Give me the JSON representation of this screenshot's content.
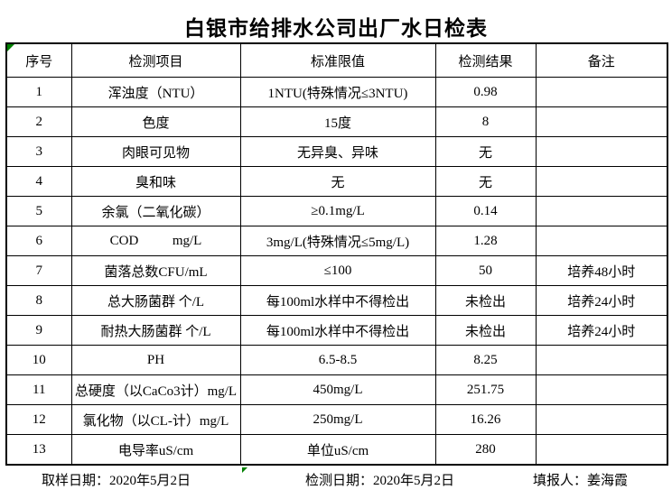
{
  "title": "白银市给排水公司出厂水日检表",
  "table": {
    "headers": [
      "序号",
      "检测项目",
      "标准限值",
      "检测结果",
      "备注"
    ],
    "rows": [
      [
        "1",
        "浑浊度（NTU）",
        "1NTU(特殊情况≤3NTU)",
        "0.98",
        ""
      ],
      [
        "2",
        "色度",
        "15度",
        "8",
        ""
      ],
      [
        "3",
        "肉眼可见物",
        "无异臭、异味",
        "无",
        ""
      ],
      [
        "4",
        "臭和味",
        "无",
        "无",
        ""
      ],
      [
        "5",
        "余氯（二氧化碳）",
        "≥0.1mg/L",
        "0.14",
        ""
      ],
      [
        "6",
        "COD          mg/L",
        "3mg/L(特殊情况≤5mg/L)",
        "1.28",
        ""
      ],
      [
        "7",
        "菌落总数CFU/mL",
        "≤100",
        "50",
        "培养48小时"
      ],
      [
        "8",
        "总大肠菌群 个/L",
        "每100ml水样中不得检出",
        "未检出",
        "培养24小时"
      ],
      [
        "9",
        "耐热大肠菌群 个/L",
        "每100ml水样中不得检出",
        "未检出",
        "培养24小时"
      ],
      [
        "10",
        "PH",
        "6.5-8.5",
        "8.25",
        ""
      ],
      [
        "11",
        "总硬度（以CaCo3计）mg/L",
        "450mg/L",
        "251.75",
        ""
      ],
      [
        "12",
        "氯化物（以CL-计）mg/L",
        "250mg/L",
        "16.26",
        ""
      ],
      [
        "13",
        "电导率uS/cm",
        "单位uS/cm",
        "280",
        ""
      ]
    ]
  },
  "footer": {
    "sampling_date": "取样日期：2020年5月2日",
    "testing_date": "检测日期：2020年5月2日",
    "reporter": "填报人：姜海霞"
  },
  "colors": {
    "grid": "#000000",
    "title_text": "#000000",
    "marker_green": "#008000",
    "background": "#ffffff"
  },
  "icons": {
    "corner_marker": "excel-green-corner-marker"
  }
}
